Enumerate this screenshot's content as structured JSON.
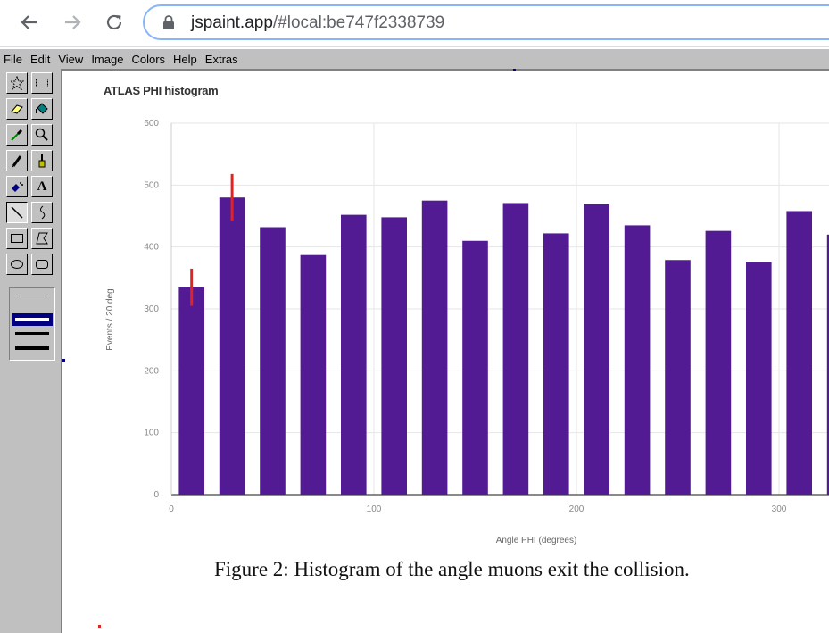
{
  "browser": {
    "url_host": "jspaint.app",
    "url_rest": "/#local:be747f2338739",
    "back_icon": "arrow-left-icon",
    "forward_icon": "arrow-right-icon",
    "reload_icon": "reload-icon",
    "lock_icon": "lock-icon"
  },
  "menu": {
    "file": "File",
    "edit": "Edit",
    "view": "View",
    "image": "Image",
    "colors": "Colors",
    "help": "Help",
    "extras": "Extras"
  },
  "tools": [
    {
      "name": "free-form-select",
      "icon": "star-select-icon"
    },
    {
      "name": "rect-select",
      "icon": "rect-select-icon"
    },
    {
      "name": "eraser",
      "icon": "eraser-icon"
    },
    {
      "name": "fill",
      "icon": "fill-bucket-icon"
    },
    {
      "name": "pick-color",
      "icon": "eyedropper-icon"
    },
    {
      "name": "magnifier",
      "icon": "magnifier-icon"
    },
    {
      "name": "pencil",
      "icon": "pencil-icon"
    },
    {
      "name": "brush",
      "icon": "brush-icon"
    },
    {
      "name": "airbrush",
      "icon": "airbrush-icon"
    },
    {
      "name": "text",
      "icon": "text-icon",
      "label": "A"
    },
    {
      "name": "line",
      "icon": "line-icon",
      "selected": true
    },
    {
      "name": "curve",
      "icon": "curve-icon"
    },
    {
      "name": "rectangle",
      "icon": "rectangle-icon"
    },
    {
      "name": "polygon",
      "icon": "polygon-icon"
    },
    {
      "name": "ellipse",
      "icon": "ellipse-icon"
    },
    {
      "name": "rounded-rectangle",
      "icon": "rounded-rectangle-icon"
    }
  ],
  "chart_data": {
    "type": "bar",
    "title": "ATLAS PHI histogram",
    "xlabel": "Angle PHI (degrees)",
    "ylabel": "Events / 20 deg",
    "ylim": [
      0,
      600
    ],
    "yticks": [
      "0",
      "100",
      "200",
      "300",
      "400",
      "500",
      "600"
    ],
    "xticks": [
      {
        "value": 0,
        "label": "0"
      },
      {
        "value": 100,
        "label": "100"
      },
      {
        "value": 200,
        "label": "200"
      },
      {
        "value": 300,
        "label": "300"
      }
    ],
    "bin_width": 20,
    "bins": [
      10,
      30,
      50,
      70,
      90,
      110,
      130,
      150,
      170,
      190,
      210,
      230,
      250,
      270,
      290,
      310,
      330
    ],
    "values": [
      335,
      480,
      432,
      387,
      452,
      448,
      475,
      410,
      471,
      422,
      469,
      435,
      379,
      426,
      375,
      458,
      420
    ],
    "bar_color": "#531b93",
    "annotation_color": "#e52222",
    "grid": true
  },
  "caption": "Figure 2: Histogram of the angle muons exit the collision."
}
